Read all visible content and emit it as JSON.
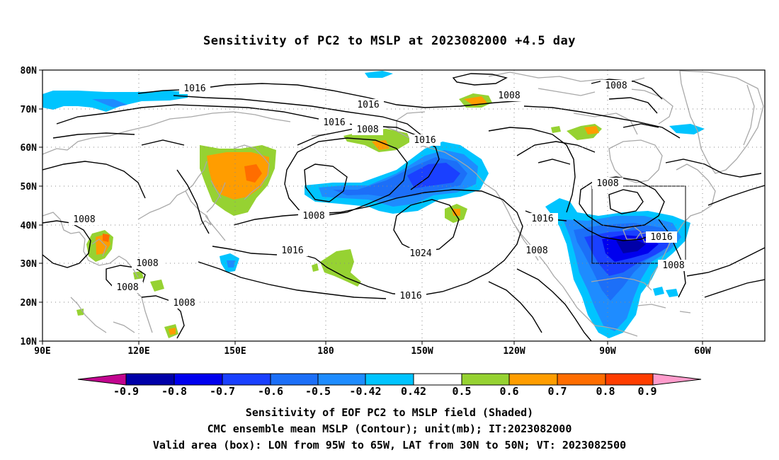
{
  "title": "Sensitivity of PC2 to MSLP at 2023082000 +4.5 day",
  "map": {
    "lat_ticks": [
      "80N",
      "70N",
      "60N",
      "50N",
      "40N",
      "30N",
      "20N",
      "10N"
    ],
    "lon_ticks": [
      "90E",
      "120E",
      "150E",
      "180",
      "150W",
      "120W",
      "90W",
      "60W"
    ],
    "contour_labels": [
      {
        "text": "1016",
        "id": "c1"
      },
      {
        "text": "1016",
        "id": "c2"
      },
      {
        "text": "1016",
        "id": "c3"
      },
      {
        "text": "1008",
        "id": "c4"
      },
      {
        "text": "1016",
        "id": "c5"
      },
      {
        "text": "1008",
        "id": "c6"
      },
      {
        "text": "1008",
        "id": "c7"
      },
      {
        "text": "1008",
        "id": "c8"
      },
      {
        "text": "1016",
        "id": "c9"
      },
      {
        "text": "1024",
        "id": "c10"
      },
      {
        "text": "1016",
        "id": "c11"
      },
      {
        "text": "1008",
        "id": "c12"
      },
      {
        "text": "1008",
        "id": "c13"
      },
      {
        "text": "1008",
        "id": "c14"
      },
      {
        "text": "1008",
        "id": "c15"
      },
      {
        "text": "1016",
        "id": "c16"
      },
      {
        "text": "1008",
        "id": "c17"
      },
      {
        "text": "1016",
        "id": "c18"
      },
      {
        "text": "1008",
        "id": "c19"
      },
      {
        "text": "1008",
        "id": "c20"
      }
    ],
    "valid_box": {
      "lon_west": "95W",
      "lon_east": "65W",
      "lat_south": "30N",
      "lat_north": "50N"
    }
  },
  "colorbar": {
    "labels": [
      "-0.9",
      "-0.8",
      "-0.7",
      "-0.6",
      "-0.5",
      "-0.42",
      "0.42",
      "0.5",
      "0.6",
      "0.7",
      "0.8",
      "0.9"
    ],
    "colors": {
      "below": "#c2058f",
      "b1": "#0000a8",
      "b2": "#0000ee",
      "b3": "#1a40ff",
      "b4": "#1c6ff8",
      "b5": "#1e8cff",
      "b6": "#00c4ff",
      "b7": "#ffffff",
      "b8": "#96d232",
      "b9": "#ff9d00",
      "b10": "#ff6d00",
      "b11": "#ff3d00",
      "b12": "#ff0000",
      "above": "#ff9ccc"
    }
  },
  "captions": {
    "line1": "Sensitivity of EOF PC2 to MSLP field (Shaded)",
    "line2": "CMC ensemble mean MSLP (Contour); unit(mb); IT:2023082000",
    "line3": "Valid area (box): LON from 95W to 65W, LAT from 30N to 50N; VT: 2023082500"
  }
}
